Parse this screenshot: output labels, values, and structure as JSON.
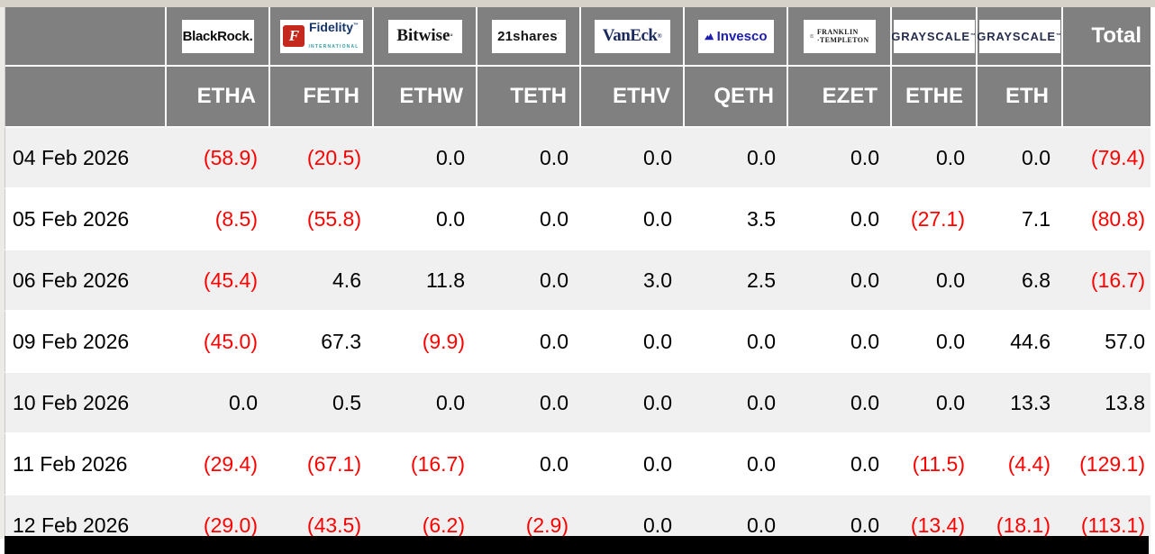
{
  "chart_data": {
    "type": "table",
    "total_label": "Total",
    "columns": [
      {
        "issuer": "BlackRock",
        "ticker": "ETHA",
        "logo": "blackrock"
      },
      {
        "issuer": "Fidelity",
        "ticker": "FETH",
        "logo": "fidelity"
      },
      {
        "issuer": "Bitwise",
        "ticker": "ETHW",
        "logo": "bitwise"
      },
      {
        "issuer": "21shares",
        "ticker": "TETH",
        "logo": "shares21"
      },
      {
        "issuer": "VanEck",
        "ticker": "ETHV",
        "logo": "vaneck"
      },
      {
        "issuer": "Invesco",
        "ticker": "QETH",
        "logo": "invesco"
      },
      {
        "issuer": "Franklin Templeton",
        "ticker": "EZET",
        "logo": "franklin"
      },
      {
        "issuer": "Grayscale",
        "ticker": "ETHE",
        "logo": "grayscale"
      },
      {
        "issuer": "Grayscale",
        "ticker": "ETH",
        "logo": "grayscale"
      }
    ],
    "rows": [
      {
        "date": "04 Feb 2026",
        "values": [
          "(58.9)",
          "(20.5)",
          "0.0",
          "0.0",
          "0.0",
          "0.0",
          "0.0",
          "0.0",
          "0.0"
        ],
        "total": "(79.4)"
      },
      {
        "date": "05 Feb 2026",
        "values": [
          "(8.5)",
          "(55.8)",
          "0.0",
          "0.0",
          "0.0",
          "3.5",
          "0.0",
          "(27.1)",
          "7.1"
        ],
        "total": "(80.8)"
      },
      {
        "date": "06 Feb 2026",
        "values": [
          "(45.4)",
          "4.6",
          "11.8",
          "0.0",
          "3.0",
          "2.5",
          "0.0",
          "0.0",
          "6.8"
        ],
        "total": "(16.7)"
      },
      {
        "date": "09 Feb 2026",
        "values": [
          "(45.0)",
          "67.3",
          "(9.9)",
          "0.0",
          "0.0",
          "0.0",
          "0.0",
          "0.0",
          "44.6"
        ],
        "total": "57.0"
      },
      {
        "date": "10 Feb 2026",
        "values": [
          "0.0",
          "0.5",
          "0.0",
          "0.0",
          "0.0",
          "0.0",
          "0.0",
          "0.0",
          "13.3"
        ],
        "total": "13.8"
      },
      {
        "date": "11 Feb 2026",
        "values": [
          "(29.4)",
          "(67.1)",
          "(16.7)",
          "0.0",
          "0.0",
          "0.0",
          "0.0",
          "(11.5)",
          "(4.4)"
        ],
        "total": "(129.1)"
      },
      {
        "date": "12 Feb 2026",
        "values": [
          "(29.0)",
          "(43.5)",
          "(6.2)",
          "(2.9)",
          "0.0",
          "0.0",
          "0.0",
          "(13.4)",
          "(18.1)"
        ],
        "total": "(113.1)"
      }
    ],
    "colors": {
      "negative_text": "#ff0000",
      "positive_text": "#000000",
      "header_bg": "#808080",
      "header_text": "#ffffff",
      "row_bg": "#ffffff",
      "row_alt_bg": "#f0f0f0",
      "bottom_bar": "#000000"
    }
  },
  "logos": {
    "blackrock": {
      "text": "BlackRock."
    },
    "fidelity": {
      "icon_letter": "F",
      "text": "Fidelity",
      "mark": "™",
      "sub": "INTERNATIONAL"
    },
    "bitwise": {
      "text": "Bitwise",
      "mark": "°"
    },
    "shares21": {
      "text": "21shares",
      "mark": "˙"
    },
    "vaneck": {
      "text": "VanEck",
      "mark": "®"
    },
    "invesco": {
      "text": "Invesco"
    },
    "franklin": {
      "line1": "FRANKLIN",
      "line2": "TEMPLETON"
    },
    "grayscale": {
      "text": "GRAYSCALE",
      "mark": "™"
    }
  }
}
